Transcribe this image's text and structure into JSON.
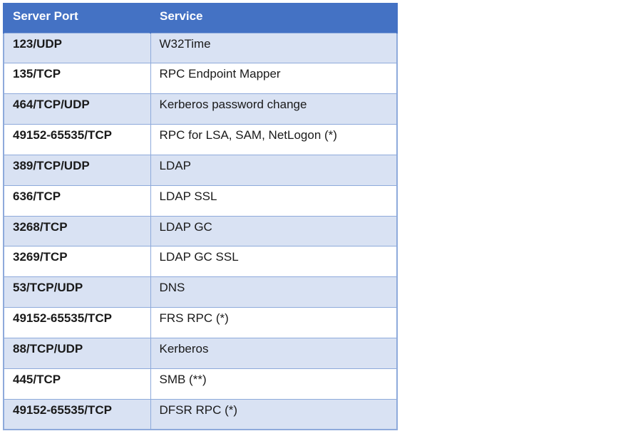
{
  "page": {
    "background": "#FFFFFF"
  },
  "table": {
    "columns": [
      "Server Port",
      "Service"
    ],
    "rows": [
      {
        "port": "123/UDP",
        "service": "W32Time"
      },
      {
        "port": "135/TCP",
        "service": "RPC Endpoint Mapper"
      },
      {
        "port": "464/TCP/UDP",
        "service": "Kerberos password change"
      },
      {
        "port": "49152-65535/TCP",
        "service": "RPC for LSA, SAM, NetLogon (*)"
      },
      {
        "port": "389/TCP/UDP",
        "service": "LDAP"
      },
      {
        "port": "636/TCP",
        "service": "LDAP SSL"
      },
      {
        "port": "3268/TCP",
        "service": "LDAP GC"
      },
      {
        "port": "3269/TCP",
        "service": "LDAP GC SSL"
      },
      {
        "port": "53/TCP/UDP",
        "service": "DNS"
      },
      {
        "port": "49152-65535/TCP",
        "service": "FRS RPC (*)"
      },
      {
        "port": "88/TCP/UDP",
        "service": "Kerberos"
      },
      {
        "port": "445/TCP",
        "service": "SMB (**)"
      },
      {
        "port": "49152-65535/TCP",
        "service": "DFSR RPC (*)"
      }
    ],
    "colors": {
      "header_bg": "#4472C4",
      "header_text": "#FFFFFF",
      "band_bg": "#D9E2F3",
      "row_bg": "#FFFFFF",
      "border": "#8EAADB",
      "text": "#1A1A1A"
    }
  }
}
